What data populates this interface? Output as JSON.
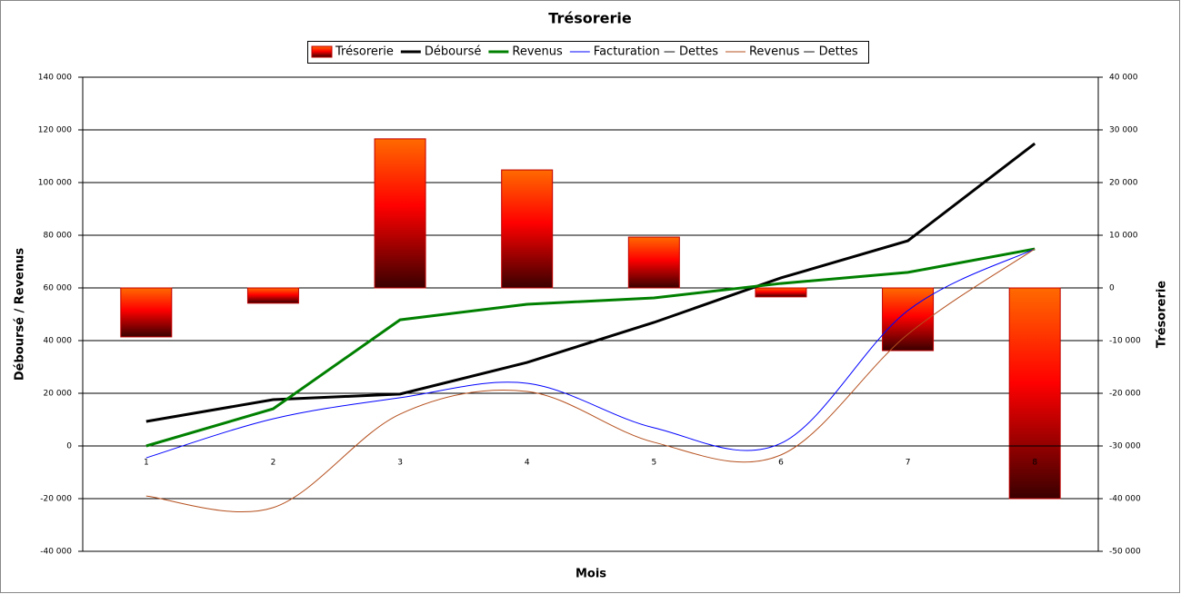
{
  "chart_data": {
    "type": "bar-line",
    "title": "Trésorerie",
    "categories": [
      "1",
      "2",
      "3",
      "4",
      "5",
      "6",
      "7",
      "8"
    ],
    "series": [
      {
        "name": "Trésorerie",
        "color": "#ff0000",
        "type": "bar",
        "axis": "y2",
        "values": [
          -9300,
          -2900,
          28300,
          22400,
          9650,
          -1700,
          -11900,
          -40000
        ]
      },
      {
        "name": "Déboursé",
        "color": "#000000",
        "type": "line",
        "values": [
          9300,
          17600,
          19700,
          31700,
          46900,
          63800,
          77900,
          114800
        ]
      },
      {
        "name": "Revenus",
        "color": "#008000",
        "type": "line",
        "values": [
          0,
          14100,
          47900,
          53800,
          56200,
          61700,
          65900,
          74800
        ]
      },
      {
        "name": "Facturation — Dettes",
        "color": "#0000ff",
        "type": "smooth",
        "values": [
          -4500,
          10300,
          18300,
          23800,
          6900,
          1000,
          51400,
          74800
        ]
      },
      {
        "name": "Revenus — Dettes",
        "color": "#b5501e",
        "type": "smooth",
        "values": [
          -19000,
          -23400,
          12100,
          20700,
          1400,
          -3400,
          42400,
          74800
        ]
      }
    ],
    "ylim": [
      -40000,
      140000
    ],
    "yticks": [
      {
        "value": -40000,
        "label": "-40 000"
      },
      {
        "value": -20000,
        "label": "-20 000"
      },
      0,
      {
        "value": 20000,
        "label": "20 000"
      },
      {
        "value": 40000,
        "label": "40 000"
      },
      {
        "value": 60000,
        "label": "60 000"
      },
      {
        "value": 80000,
        "label": "80 000"
      },
      {
        "value": 100000,
        "label": "100 000"
      },
      {
        "value": 120000,
        "label": "120 000"
      },
      {
        "value": 140000,
        "label": "140 000"
      }
    ],
    "y2lim": [
      -50000,
      40000
    ],
    "y2ticks": [
      {
        "value": -50000,
        "label": "-50 000"
      },
      {
        "value": -40000,
        "label": "-40 000"
      },
      {
        "value": -30000,
        "label": "-30 000"
      },
      {
        "value": -20000,
        "label": "-20 000"
      },
      {
        "value": -10000,
        "label": "-10 000"
      },
      0,
      {
        "value": 10000,
        "label": "10 000"
      },
      {
        "value": 20000,
        "label": "20 000"
      },
      {
        "value": 30000,
        "label": "30 000"
      },
      {
        "value": 40000,
        "label": "40 000"
      }
    ],
    "ylabel": "Déboursé / Revenus",
    "y2label": "Trésorerie",
    "xlabel": "Mois",
    "grid": true,
    "legend": "top"
  }
}
